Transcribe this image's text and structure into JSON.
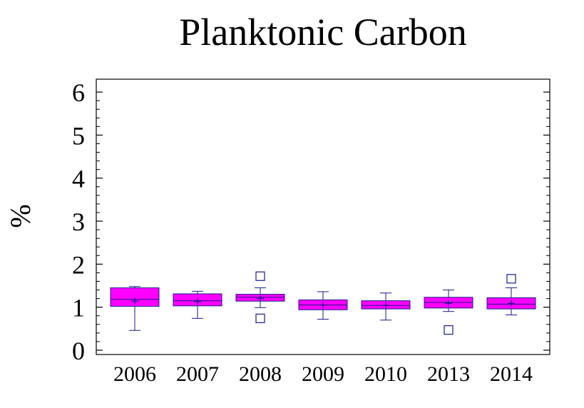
{
  "chart_data": {
    "type": "box",
    "title": "Planktonic Carbon",
    "ylabel": "%",
    "xlabel": "",
    "ylim": [
      -0.1,
      6.3
    ],
    "yticks": [
      "0",
      "1",
      "2",
      "3",
      "4",
      "5",
      "6"
    ],
    "categories": [
      "2006",
      "2007",
      "2008",
      "2009",
      "2010",
      "2013",
      "2014"
    ],
    "box_color": "#ff00ff",
    "line_color": "#1a1a8c",
    "boxes": [
      {
        "category": "2006",
        "whisker_low": 0.46,
        "q1": 1.02,
        "median": 1.18,
        "q3": 1.45,
        "whisker_high": 1.48,
        "mean": 1.14,
        "outliers": []
      },
      {
        "category": "2007",
        "whisker_low": 0.74,
        "q1": 1.03,
        "median": 1.15,
        "q3": 1.31,
        "whisker_high": 1.37,
        "mean": 1.13,
        "outliers": []
      },
      {
        "category": "2008",
        "whisker_low": 0.99,
        "q1": 1.14,
        "median": 1.23,
        "q3": 1.3,
        "whisker_high": 1.45,
        "mean": 1.2,
        "outliers": [
          1.72,
          0.74
        ]
      },
      {
        "category": "2009",
        "whisker_low": 0.72,
        "q1": 0.94,
        "median": 1.05,
        "q3": 1.17,
        "whisker_high": 1.36,
        "mean": 1.05,
        "outliers": []
      },
      {
        "category": "2010",
        "whisker_low": 0.7,
        "q1": 0.96,
        "median": 1.04,
        "q3": 1.15,
        "whisker_high": 1.33,
        "mean": 1.04,
        "outliers": []
      },
      {
        "category": "2013",
        "whisker_low": 0.9,
        "q1": 0.98,
        "median": 1.11,
        "q3": 1.23,
        "whisker_high": 1.4,
        "mean": 1.09,
        "outliers": [
          0.47
        ]
      },
      {
        "category": "2014",
        "whisker_low": 0.82,
        "q1": 0.96,
        "median": 1.07,
        "q3": 1.22,
        "whisker_high": 1.45,
        "mean": 1.09,
        "outliers": [
          1.66
        ]
      }
    ]
  }
}
